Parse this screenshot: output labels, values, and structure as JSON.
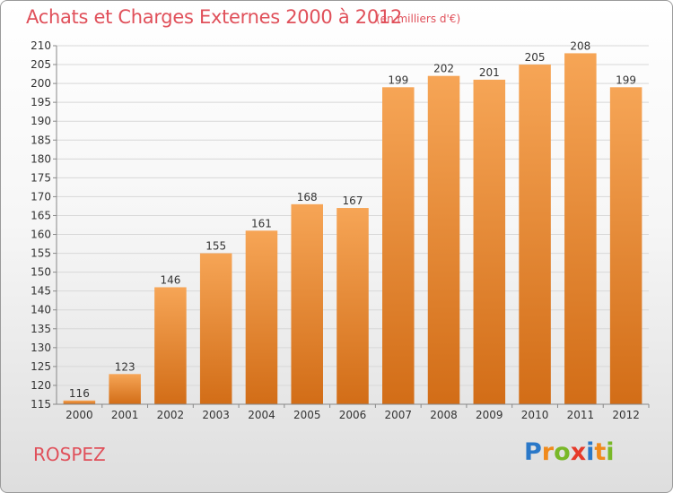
{
  "header": {
    "title": "Achats et Charges Externes 2000 à 2012",
    "subtitle": "(en milliers d'€)"
  },
  "footer": {
    "city": "ROSPEZ",
    "logo_letters": [
      "P",
      "r",
      "o",
      "x",
      "i",
      "t",
      "i"
    ]
  },
  "colors": {
    "bar_top": "#f6a556",
    "bar_bottom": "#d26d17",
    "title": "#e0505a",
    "logo": [
      "#2a78c8",
      "#f08a1c",
      "#79b828",
      "#e63a2a",
      "#2a78c8",
      "#f08a1c",
      "#79b828"
    ]
  },
  "chart_data": {
    "type": "bar",
    "categories": [
      "2000",
      "2001",
      "2002",
      "2003",
      "2004",
      "2005",
      "2006",
      "2007",
      "2008",
      "2009",
      "2010",
      "2011",
      "2012"
    ],
    "values": [
      116,
      123,
      146,
      155,
      161,
      168,
      167,
      199,
      202,
      201,
      205,
      208,
      199
    ],
    "ylim": [
      115,
      210
    ],
    "yticks": [
      115,
      120,
      125,
      130,
      135,
      140,
      145,
      150,
      155,
      160,
      165,
      170,
      175,
      180,
      185,
      190,
      195,
      200,
      205,
      210
    ],
    "grid": true
  }
}
